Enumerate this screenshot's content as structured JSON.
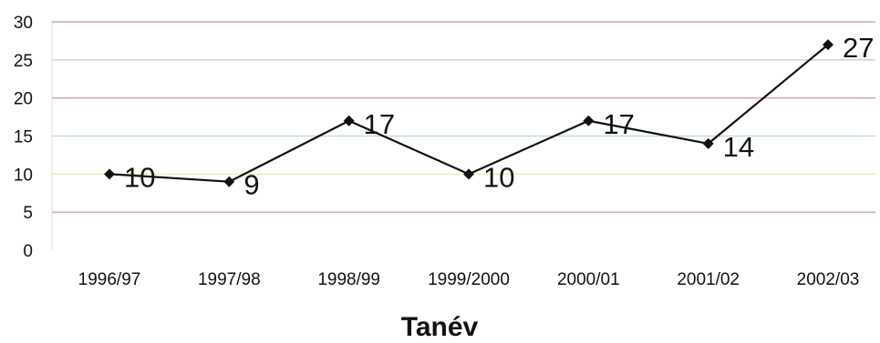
{
  "chart_data": {
    "type": "line",
    "categories": [
      "1996/97",
      "1997/98",
      "1998/99",
      "1999/2000",
      "2000/01",
      "2001/02",
      "2002/03"
    ],
    "series": [
      {
        "values": [
          10,
          9,
          17,
          10,
          17,
          14,
          27
        ]
      }
    ],
    "data_labels": [
      "10",
      "9",
      "17",
      "10",
      "17",
      "14",
      "27"
    ],
    "xlabel": "Tanév",
    "ylabel": "",
    "ylim": [
      0,
      30
    ],
    "yticks": [
      0,
      5,
      10,
      15,
      20,
      25,
      30
    ],
    "grid": true,
    "gridline_colors": [
      "#c98ab4",
      "#f2e79a",
      "#b7d3ea",
      "#c98ab4",
      "#d7b3d0",
      "#c98ab4"
    ],
    "line_color": "#111111",
    "marker": "diamond"
  }
}
